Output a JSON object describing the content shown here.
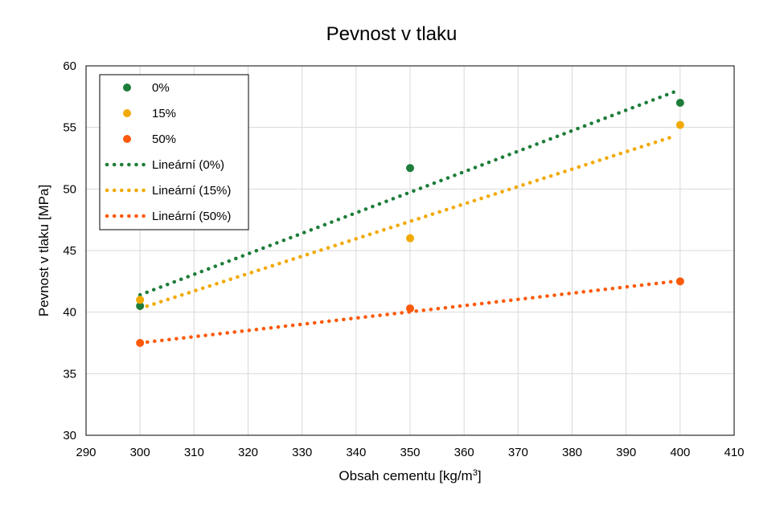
{
  "chart_data": {
    "type": "scatter",
    "title": "Pevnost v tlaku",
    "xlabel": "Obsah cementu [kg/m",
    "xlabel_superscript": "3",
    "xlabel_suffix": "]",
    "ylabel": "Pevnost v tlaku [MPa]",
    "xlim": [
      290,
      410
    ],
    "ylim": [
      30,
      60
    ],
    "xticks": [
      290,
      300,
      310,
      320,
      330,
      340,
      350,
      360,
      370,
      380,
      390,
      400,
      410
    ],
    "yticks": [
      30,
      35,
      40,
      45,
      50,
      55,
      60
    ],
    "grid": true,
    "legend_position": "top-left",
    "series": [
      {
        "name": "0%",
        "color": "#1e7d3a",
        "x": [
          300,
          350,
          400
        ],
        "y": [
          40.5,
          51.7,
          57.0
        ]
      },
      {
        "name": "15%",
        "color": "#f2a900",
        "x": [
          300,
          350,
          400
        ],
        "y": [
          41.0,
          46.0,
          55.2
        ]
      },
      {
        "name": "50%",
        "color": "#fc5a0a",
        "x": [
          300,
          350,
          400
        ],
        "y": [
          37.5,
          40.3,
          42.5
        ]
      }
    ],
    "trendlines": [
      {
        "name": "Lineární (0%)",
        "color": "#1e7d3a",
        "x": [
          300,
          399
        ],
        "y": [
          41.4,
          57.9
        ]
      },
      {
        "name": "Lineární (15%)",
        "color": "#f2a900",
        "x": [
          300,
          399
        ],
        "y": [
          40.3,
          54.3
        ]
      },
      {
        "name": "Lineární (50%)",
        "color": "#fc5a0a",
        "x": [
          300,
          399
        ],
        "y": [
          37.5,
          42.5
        ]
      }
    ]
  }
}
